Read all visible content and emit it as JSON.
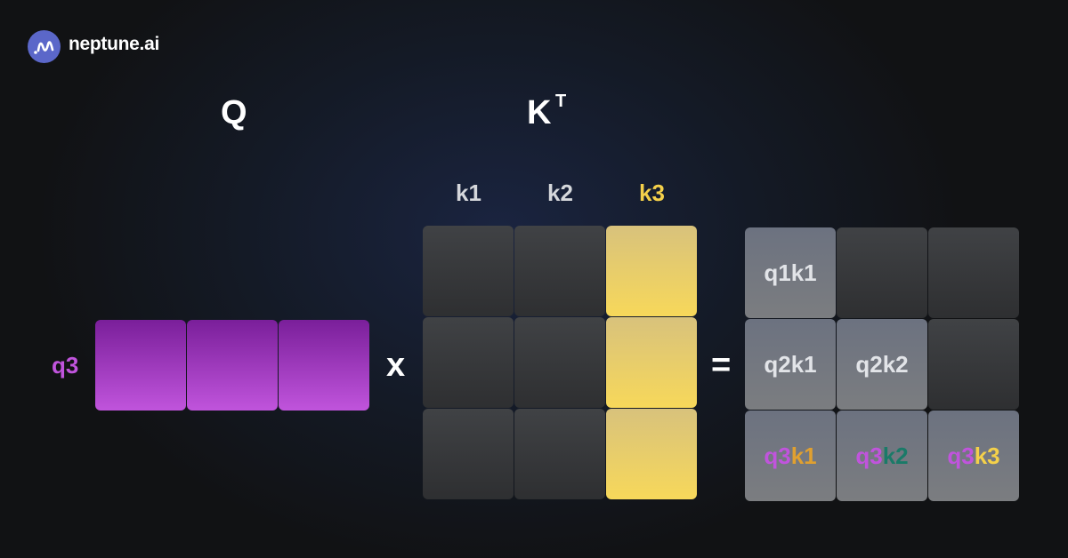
{
  "brand": {
    "name": "neptune.ai",
    "logo_color": "#5b67c9"
  },
  "labels": {
    "q": "Q",
    "k": "K",
    "k_sup": "T",
    "row_label": "q3",
    "times": "x",
    "equals": "="
  },
  "k_columns": [
    "k1",
    "k2",
    "k3"
  ],
  "result": {
    "rows": [
      [
        {
          "a": "q1k1"
        },
        null,
        null
      ],
      [
        {
          "a": "q2k1"
        },
        {
          "a": "q2k2"
        },
        null
      ],
      [
        {
          "a": "q3",
          "b": "k1"
        },
        {
          "a": "q3",
          "b": "k2"
        },
        {
          "a": "q3",
          "b": "k3"
        }
      ]
    ]
  },
  "colors": {
    "q": "#c054dc",
    "k1": "#e0a030",
    "k2": "#1a7a68",
    "k3": "#f4d04a",
    "result_text": "#e2e4e8"
  }
}
